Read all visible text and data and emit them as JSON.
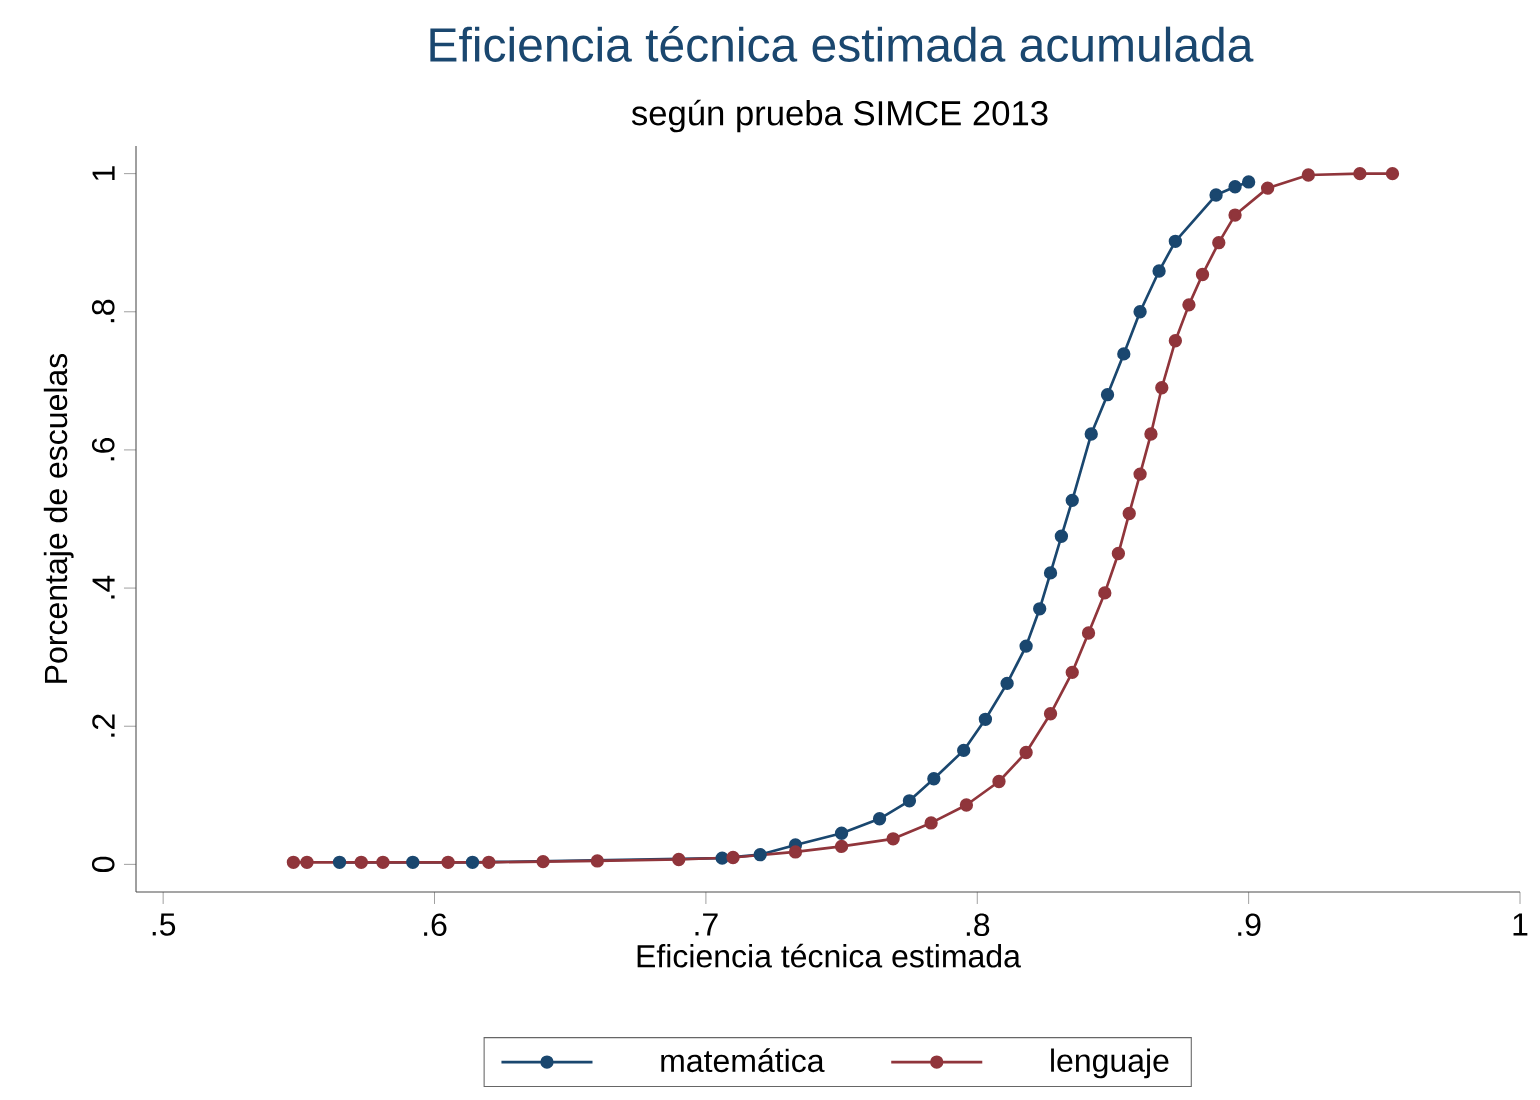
{
  "chart_data": {
    "type": "line",
    "title": "Eficiencia técnica estimada acumulada",
    "subtitle": "según prueba SIMCE 2013",
    "xlabel": "Eficiencia técnica estimada",
    "ylabel": "Porcentaje de escuelas",
    "xlim": [
      0.49,
      1.0
    ],
    "ylim": [
      -0.04,
      1.04
    ],
    "xticks": [
      {
        "value": 0.5,
        "label": ".5"
      },
      {
        "value": 0.6,
        "label": ".6"
      },
      {
        "value": 0.7,
        "label": ".7"
      },
      {
        "value": 0.8,
        "label": ".8"
      },
      {
        "value": 0.9,
        "label": ".9"
      },
      1
    ],
    "yticks": [
      0,
      {
        "value": 0.2,
        "label": ".2"
      },
      {
        "value": 0.4,
        "label": ".4"
      },
      {
        "value": 0.6,
        "label": ".6"
      },
      {
        "value": 0.8,
        "label": ".8"
      },
      1
    ],
    "marker": "circle",
    "line_style": "solid",
    "legend": "bottom",
    "series": [
      {
        "name": "matemática",
        "color": "#1a476f",
        "x": [
          0.565,
          0.592,
          0.614,
          0.706,
          0.72,
          0.733,
          0.75,
          0.764,
          0.775,
          0.784,
          0.795,
          0.803,
          0.811,
          0.818,
          0.823,
          0.827,
          0.831,
          0.835,
          0.842,
          0.848,
          0.854,
          0.86,
          0.867,
          0.873,
          0.888,
          0.895,
          0.9
        ],
        "values": [
          0.003,
          0.003,
          0.003,
          0.009,
          0.014,
          0.028,
          0.045,
          0.066,
          0.092,
          0.124,
          0.165,
          0.21,
          0.262,
          0.316,
          0.37,
          0.422,
          0.475,
          0.527,
          0.623,
          0.68,
          0.739,
          0.8,
          0.859,
          0.902,
          0.969,
          0.981,
          0.988
        ]
      },
      {
        "name": "lenguaje",
        "color": "#90353b",
        "x": [
          0.548,
          0.553,
          0.573,
          0.581,
          0.605,
          0.62,
          0.64,
          0.66,
          0.69,
          0.71,
          0.733,
          0.75,
          0.769,
          0.783,
          0.796,
          0.808,
          0.818,
          0.827,
          0.835,
          0.841,
          0.847,
          0.852,
          0.856,
          0.86,
          0.864,
          0.868,
          0.873,
          0.878,
          0.883,
          0.889,
          0.895,
          0.907,
          0.922,
          0.941,
          0.953
        ],
        "values": [
          0.003,
          0.003,
          0.003,
          0.003,
          0.003,
          0.003,
          0.004,
          0.005,
          0.007,
          0.01,
          0.018,
          0.026,
          0.037,
          0.06,
          0.086,
          0.12,
          0.162,
          0.218,
          0.278,
          0.335,
          0.393,
          0.45,
          0.508,
          0.565,
          0.623,
          0.69,
          0.758,
          0.81,
          0.854,
          0.9,
          0.94,
          0.979,
          0.998,
          1.0,
          1.0
        ]
      }
    ]
  }
}
